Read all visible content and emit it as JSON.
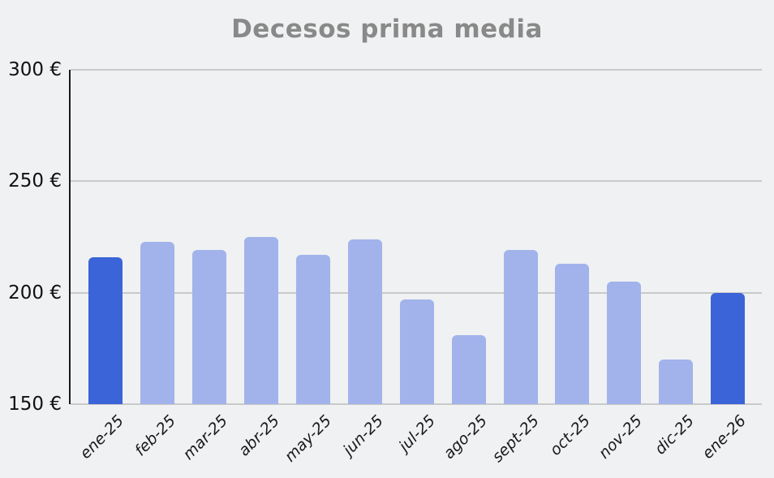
{
  "chart": {
    "title": "Decesos prima media"
  },
  "chart_data": {
    "type": "bar",
    "title": "Decesos prima media",
    "categories": [
      "ene-25",
      "feb-25",
      "mar-25",
      "abr-25",
      "may-25",
      "jun-25",
      "jul-25",
      "ago-25",
      "sept-25",
      "oct-25",
      "nov-25",
      "dic-25",
      "ene-26"
    ],
    "values": [
      216,
      223,
      219,
      225,
      217,
      224,
      197,
      181,
      219,
      213,
      205,
      170,
      200
    ],
    "xlabel": "",
    "ylabel": "",
    "ylim": [
      150,
      300
    ],
    "y_ticks": [
      {
        "label": "300 €",
        "value": 300
      },
      {
        "label": "250 €",
        "value": 250
      },
      {
        "label": "200 €",
        "value": 200
      },
      {
        "label": "150 €",
        "value": 150
      }
    ],
    "grid": true,
    "legend": "none",
    "x_label_rotation_deg": 45,
    "highlighted_indices": [
      0,
      12
    ],
    "colors": {
      "bar_default": "#a2b3eb",
      "bar_highlight": "#3b64d8",
      "background": "#eff1f2",
      "title_text": "#898989",
      "gridline": "#c9c9c9",
      "axis_line": "#1a1a1a",
      "tick_text": "#111111"
    }
  }
}
